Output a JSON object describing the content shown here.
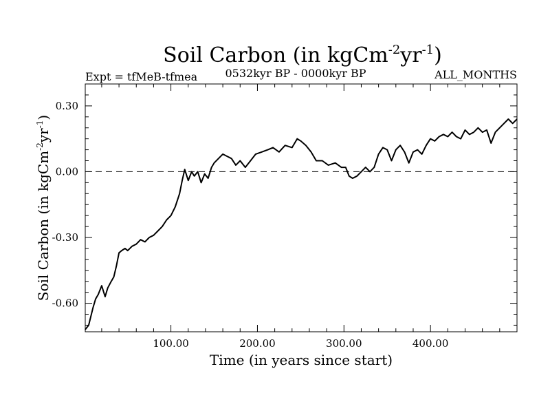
{
  "chart_data": {
    "type": "line",
    "title_main": "Soil Carbon (in kgCm",
    "title_sup1": "-2",
    "title_mid": "yr",
    "title_sup2": "-1",
    "title_end": ")",
    "subtitle_left": "Expt = tfMeB-tfmea",
    "subtitle_center": "0532kyr BP - 0000kyr BP",
    "subtitle_right": "ALL_MONTHS",
    "xlabel": "Time (in years since start)",
    "ylabel_main": "Soil Carbon (in kgCm",
    "ylabel_sup1": "-2",
    "ylabel_mid": "yr",
    "ylabel_sup2": "-1",
    "ylabel_end": ")",
    "xlim": [
      1,
      500
    ],
    "ylim": [
      -0.73,
      0.4
    ],
    "xticks": [
      100,
      200,
      300,
      400
    ],
    "xtick_labels": [
      "100.00",
      "200.00",
      "300.00",
      "400.00"
    ],
    "yticks": [
      0.3,
      0.0,
      -0.3,
      -0.6
    ],
    "ytick_labels": [
      "0.30",
      "0.00",
      "-0.30",
      "-0.60"
    ],
    "reference_line": 0.0,
    "line_color": "#000000",
    "series": [
      {
        "x": [
          1,
          5,
          10,
          13,
          16,
          20,
          24,
          27,
          31,
          34,
          37,
          40,
          43,
          47,
          50,
          55,
          60,
          65,
          70,
          75,
          80,
          85,
          90,
          95,
          100,
          105,
          110,
          113,
          116,
          120,
          124,
          127,
          131,
          135,
          139,
          143,
          147,
          150,
          155,
          160,
          165,
          170,
          175,
          180,
          186,
          192,
          198,
          205,
          212,
          218,
          225,
          232,
          240,
          246,
          250,
          256,
          262,
          268,
          275,
          282,
          290,
          297,
          302,
          306,
          310,
          315,
          320,
          325,
          330,
          335,
          340,
          345,
          350,
          355,
          360,
          365,
          370,
          375,
          380,
          385,
          390,
          395,
          400,
          405,
          410,
          415,
          420,
          425,
          430,
          435,
          440,
          445,
          450,
          455,
          460,
          465,
          470,
          475,
          480,
          485,
          490,
          495,
          500
        ],
        "y": [
          -0.72,
          -0.7,
          -0.62,
          -0.58,
          -0.56,
          -0.52,
          -0.57,
          -0.53,
          -0.5,
          -0.48,
          -0.43,
          -0.37,
          -0.36,
          -0.35,
          -0.36,
          -0.34,
          -0.33,
          -0.31,
          -0.32,
          -0.3,
          -0.29,
          -0.27,
          -0.25,
          -0.22,
          -0.2,
          -0.16,
          -0.1,
          -0.04,
          0.01,
          -0.04,
          0.0,
          -0.02,
          0.0,
          -0.05,
          -0.01,
          -0.03,
          0.02,
          0.04,
          0.06,
          0.08,
          0.07,
          0.06,
          0.03,
          0.05,
          0.02,
          0.05,
          0.08,
          0.09,
          0.1,
          0.11,
          0.09,
          0.12,
          0.11,
          0.15,
          0.14,
          0.12,
          0.09,
          0.05,
          0.05,
          0.03,
          0.04,
          0.02,
          0.02,
          -0.02,
          -0.03,
          -0.02,
          0.0,
          0.02,
          0.0,
          0.02,
          0.08,
          0.11,
          0.1,
          0.05,
          0.1,
          0.12,
          0.09,
          0.04,
          0.09,
          0.1,
          0.08,
          0.12,
          0.15,
          0.14,
          0.16,
          0.17,
          0.16,
          0.18,
          0.16,
          0.15,
          0.19,
          0.17,
          0.18,
          0.2,
          0.18,
          0.19,
          0.13,
          0.18,
          0.2,
          0.22,
          0.24,
          0.22,
          0.24
        ]
      }
    ]
  }
}
